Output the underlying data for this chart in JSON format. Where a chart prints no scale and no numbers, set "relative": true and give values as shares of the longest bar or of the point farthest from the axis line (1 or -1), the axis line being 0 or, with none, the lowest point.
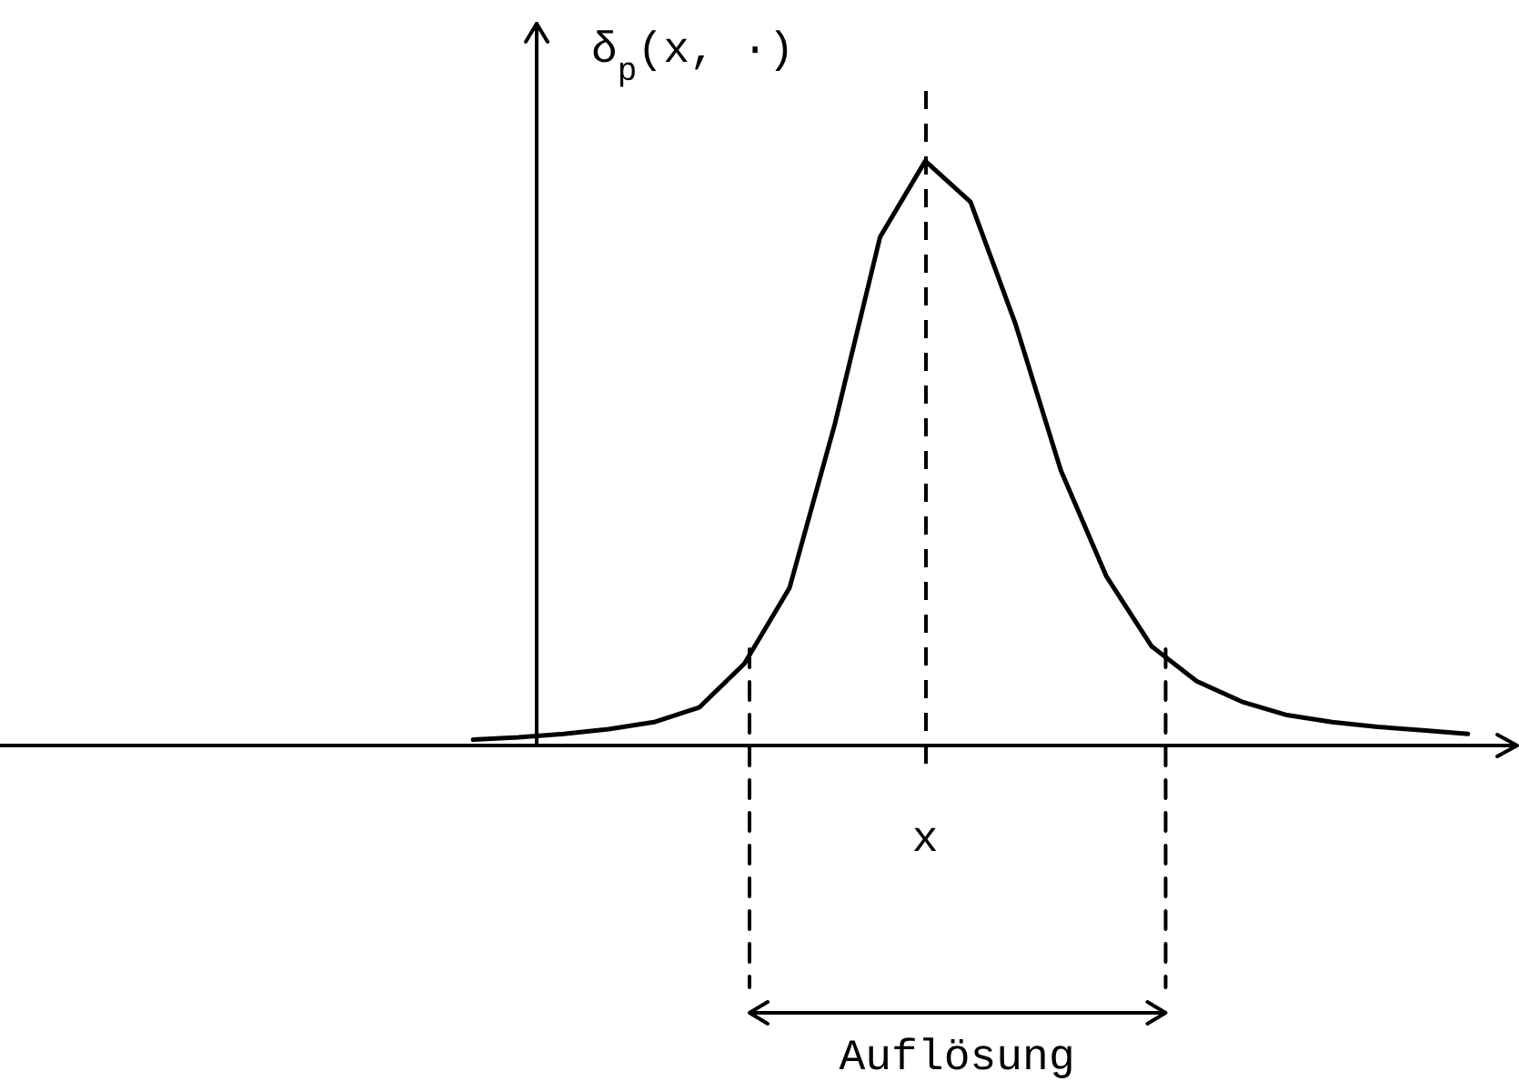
{
  "chart_data": {
    "type": "line",
    "relative": true,
    "ylabel": "δ$_{p}$(x, ·)",
    "categories": [
      null,
      null,
      null,
      null,
      null,
      null,
      null,
      null,
      null,
      null,
      null,
      null,
      null,
      null,
      null,
      null,
      null,
      null,
      null,
      null,
      null,
      null,
      null
    ],
    "marker": "none",
    "line_style": "solid",
    "series": [
      {
        "color": "#000000",
        "values": [
          0.01,
          0.014,
          0.02,
          0.028,
          0.04,
          0.065,
          0.14,
          0.27,
          0.55,
          0.87,
          1,
          0.93,
          0.72,
          0.47,
          0.29,
          0.17,
          0.11,
          0.075,
          0.052,
          0.04,
          0.032,
          0.026,
          0.02
        ]
      }
    ],
    "annotations": [
      "x",
      "Auflösung"
    ]
  }
}
